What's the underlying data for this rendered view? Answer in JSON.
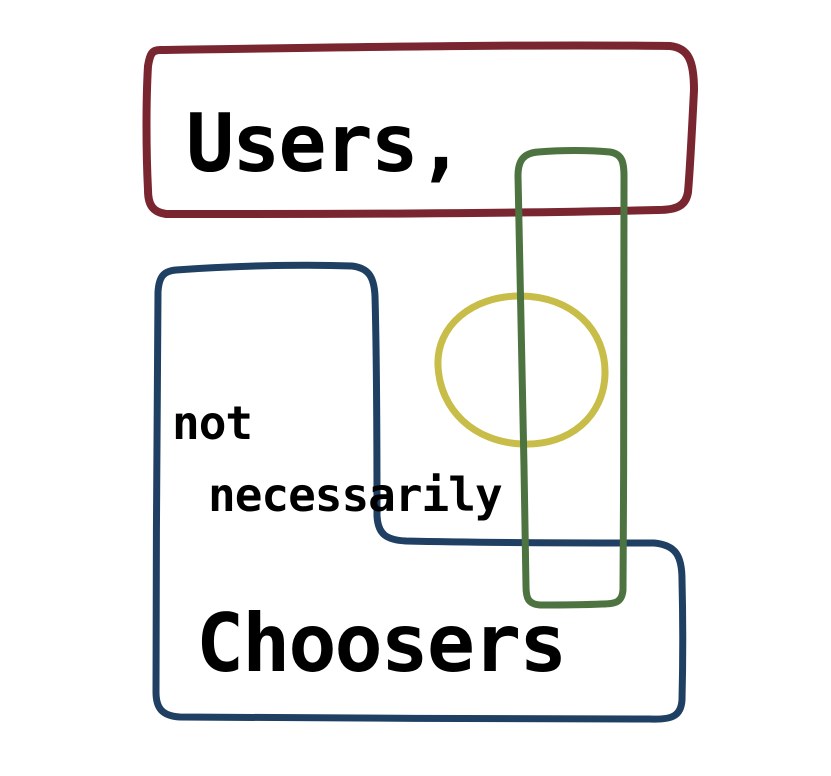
{
  "words": {
    "users": "Users,",
    "not": "not",
    "necessarily": "necessarily",
    "choosers": "Choosers"
  },
  "colors": {
    "background": "#ffffff",
    "text": "#000000",
    "red_shape": "#7a2631",
    "blue_shape": "#1f3f63",
    "green_shape": "#4c7340",
    "yellow_shape": "#c8bd48"
  }
}
